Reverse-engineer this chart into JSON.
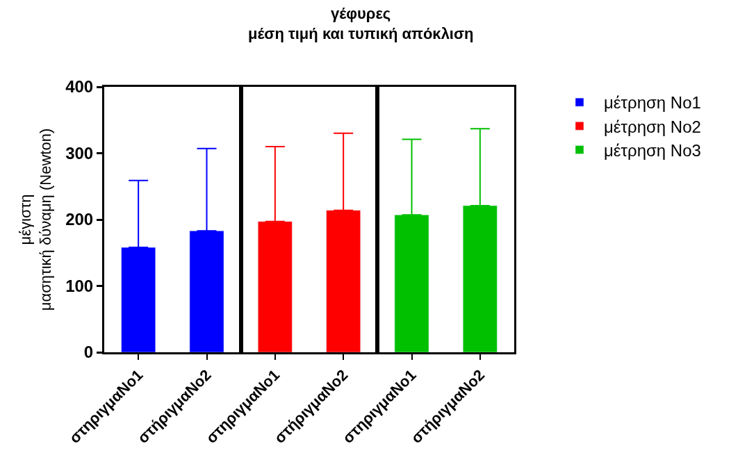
{
  "chart_data": [
    {
      "type": "other",
      "title": "γέφυρες\nμέση τιμή και τυπική απόκλιση"
    },
    {
      "type": "bar",
      "ylabel": "μέγιστη\nμασητική δύναμη (Newton)",
      "categories": [
        "στηριγμαNo1",
        "στήριγμαNo2"
      ],
      "series": [
        {
          "name": "μέτρηση No1",
          "color": "#0000ff",
          "values": [
            158,
            183
          ],
          "errors": [
            [
              158,
              259
            ],
            [
              183,
              307
            ]
          ]
        }
      ],
      "ylim": [
        0,
        400
      ],
      "yticks": [
        0,
        100,
        200,
        300,
        400
      ],
      "grid": false,
      "legend": "right"
    },
    {
      "type": "bar",
      "categories": [
        "στηριγμαNo1",
        "στήριγμαNo2"
      ],
      "series": [
        {
          "name": "μέτρηση No2",
          "color": "#ff0000",
          "values": [
            197,
            214
          ],
          "errors": [
            [
              197,
              310
            ],
            [
              214,
              330
            ]
          ]
        }
      ],
      "ylim": [
        0,
        400
      ],
      "yticks": [
        0,
        100,
        200,
        300,
        400
      ],
      "grid": false,
      "legend": "right",
      "tick_labels": "x"
    },
    {
      "type": "bar",
      "categories": [
        "στηριγμαNo1",
        "στήριγμαNo2"
      ],
      "series": [
        {
          "name": "μέτρηση No3",
          "color": "#00c000",
          "values": [
            207,
            221
          ],
          "errors": [
            [
              207,
              321
            ],
            [
              221,
              337
            ]
          ]
        }
      ],
      "ylim": [
        0,
        400
      ],
      "yticks": [
        0,
        100,
        200,
        300,
        400
      ],
      "grid": false,
      "legend": "right",
      "tick_labels": "x"
    }
  ]
}
